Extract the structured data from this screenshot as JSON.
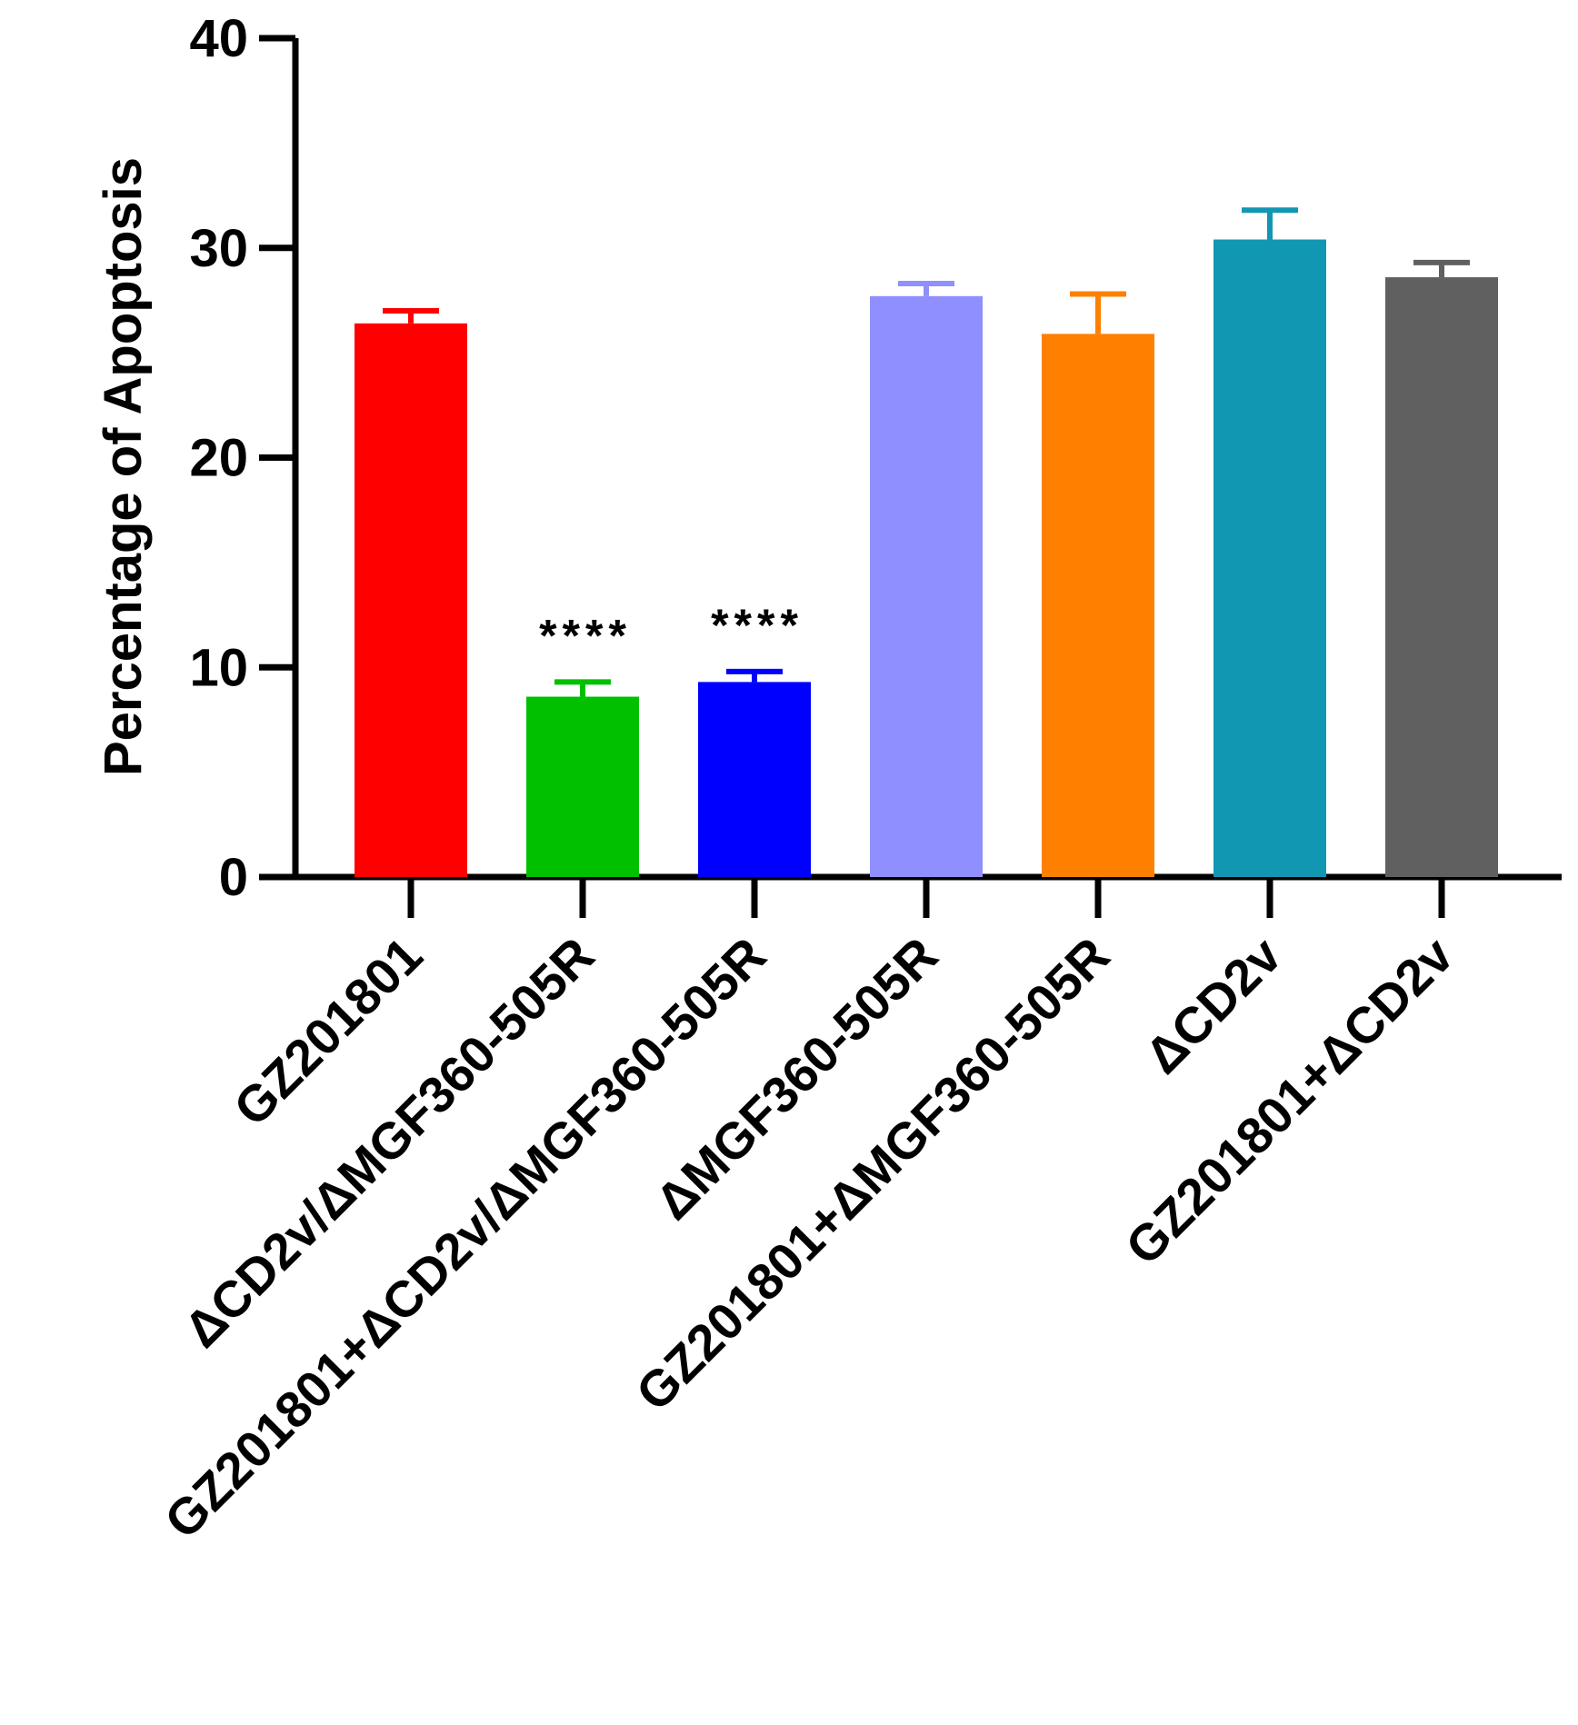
{
  "chart_data": {
    "type": "bar",
    "title": "",
    "xlabel": "",
    "ylabel": "Percentage of Apoptosis",
    "ylim": [
      0,
      40
    ],
    "yticks": [
      "0",
      "10",
      "20",
      "30",
      "40"
    ],
    "categories": [
      "GZ201801",
      "ΔCD2v/ΔMGF360-505R",
      "GZ201801+ΔCD2v/ΔMGF360-505R",
      "ΔMGF360-505R",
      "GZ201801+ΔMGF360-505R",
      "ΔCD2v",
      "GZ201801+ΔCD2v"
    ],
    "values": [
      26.4,
      8.6,
      9.3,
      27.7,
      25.9,
      30.4,
      28.6
    ],
    "errors": [
      0.6,
      0.7,
      0.5,
      0.6,
      1.9,
      1.4,
      0.7
    ],
    "colors": [
      "#ff0000",
      "#00c000",
      "#0000ff",
      "#8f8fff",
      "#ff8000",
      "#1297b3",
      "#606060"
    ],
    "significance": [
      "",
      "****",
      "****",
      "",
      "",
      "",
      ""
    ],
    "grid": false,
    "legend": "none"
  }
}
